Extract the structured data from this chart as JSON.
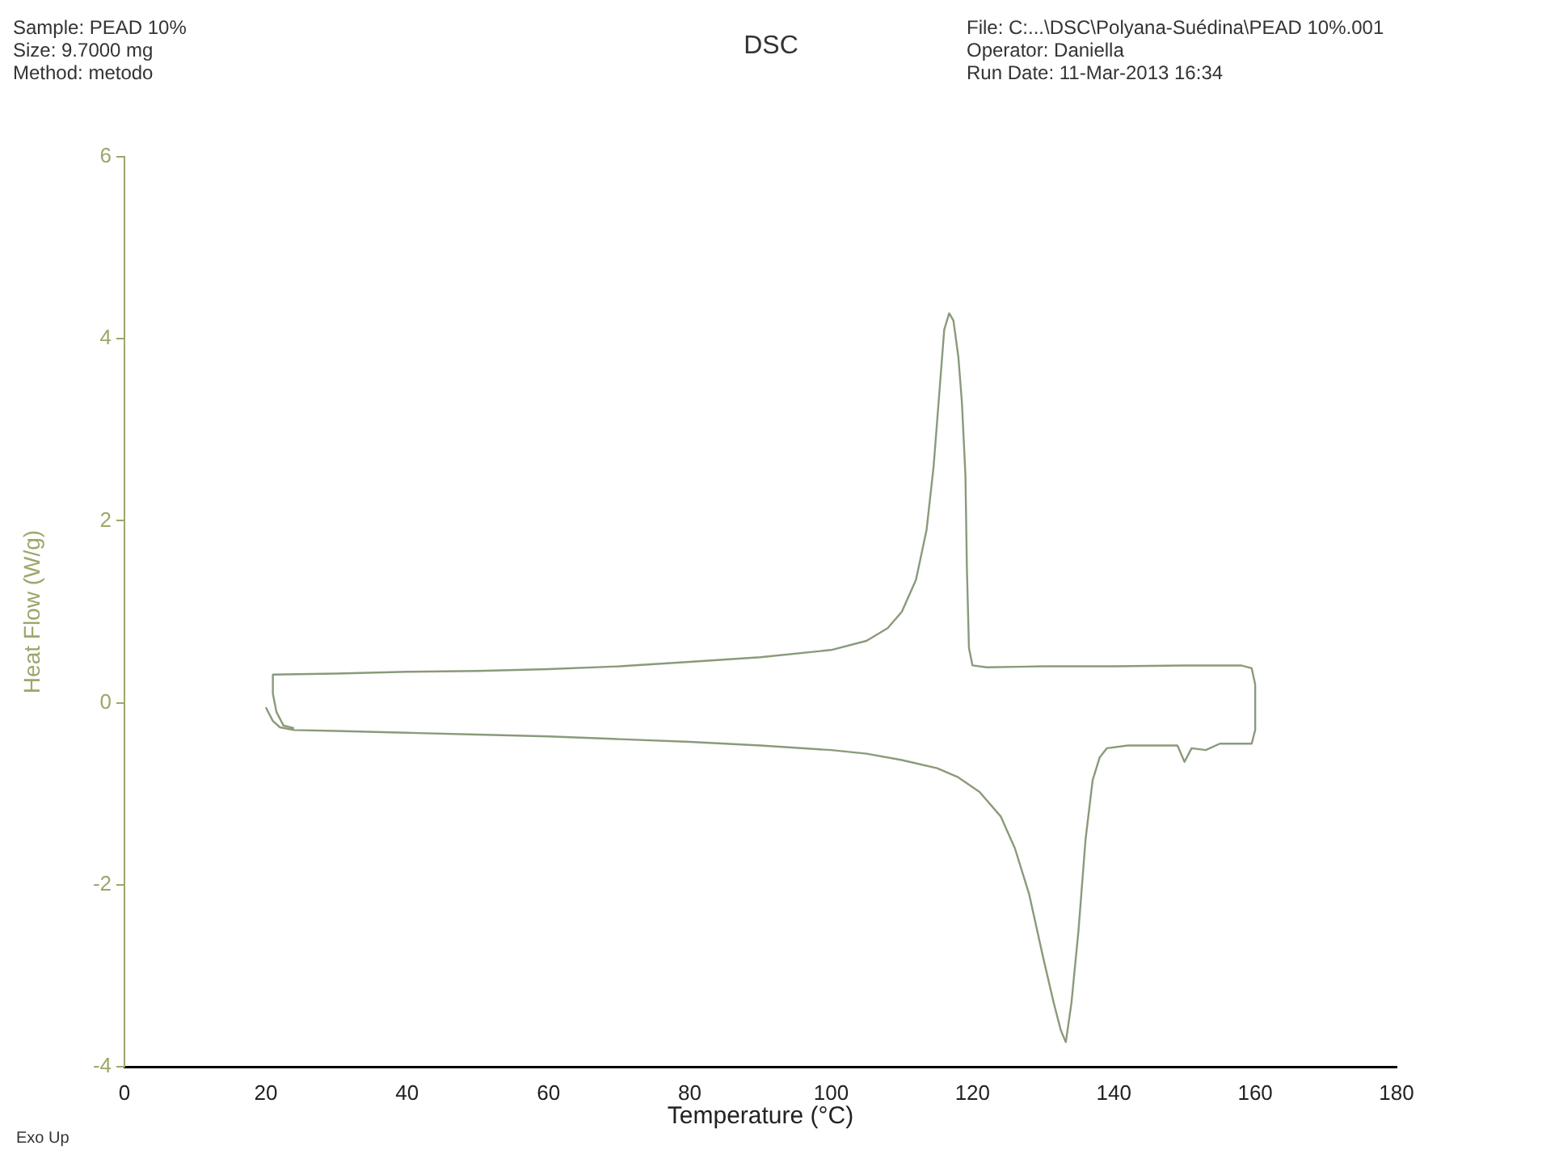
{
  "chart_data": {
    "type": "line",
    "title": "DSC",
    "xlabel": "Temperature (°C)",
    "ylabel": "Heat Flow (W/g)",
    "annotations": [
      "Sample: PEAD 10%",
      "Size: 9.7000 mg",
      "Method: metodo",
      "File: C:...\\DSC\\Polyana-Suédina\\PEAD 10%.001",
      "Operator: Daniella",
      "Run Date: 11-Mar-2013 16:34",
      "Exo Up"
    ],
    "series": [
      {
        "color": "#8a9a7a",
        "x": [
          20,
          21,
          22,
          24,
          30,
          40,
          50,
          60,
          70,
          80,
          90,
          100,
          105,
          110,
          115,
          118,
          121,
          124,
          126,
          128,
          130,
          131.5,
          132.5,
          133.2,
          134,
          135,
          136,
          137,
          138,
          139,
          142,
          145,
          149,
          150,
          151,
          153,
          155,
          158,
          159.5,
          160,
          160,
          159.5,
          158,
          150,
          140,
          130,
          122,
          120,
          119.5,
          119.2,
          119,
          118.5,
          118,
          117.3,
          116.7,
          116,
          115.3,
          114.5,
          113.5,
          112,
          110,
          108,
          105,
          100,
          90,
          80,
          70,
          60,
          50,
          40,
          30,
          21,
          21,
          21.5,
          22.5,
          24
        ],
        "values": [
          -0.05,
          -0.2,
          -0.27,
          -0.3,
          -0.31,
          -0.33,
          -0.35,
          -0.37,
          -0.4,
          -0.43,
          -0.47,
          -0.52,
          -0.56,
          -0.63,
          -0.72,
          -0.82,
          -0.98,
          -1.25,
          -1.6,
          -2.1,
          -2.8,
          -3.3,
          -3.6,
          -3.73,
          -3.3,
          -2.5,
          -1.5,
          -0.85,
          -0.6,
          -0.5,
          -0.47,
          -0.47,
          -0.47,
          -0.65,
          -0.5,
          -0.52,
          -0.45,
          -0.45,
          -0.45,
          -0.3,
          0.2,
          0.38,
          0.41,
          0.41,
          0.4,
          0.4,
          0.39,
          0.41,
          0.6,
          1.5,
          2.5,
          3.3,
          3.8,
          4.2,
          4.28,
          4.1,
          3.4,
          2.6,
          1.9,
          1.35,
          1.0,
          0.82,
          0.68,
          0.58,
          0.5,
          0.45,
          0.4,
          0.37,
          0.35,
          0.34,
          0.32,
          0.31,
          0.1,
          -0.1,
          -0.25,
          -0.28
        ]
      }
    ],
    "xlim": [
      0,
      180
    ],
    "xticks": [
      0,
      20,
      40,
      60,
      80,
      100,
      120,
      140,
      160,
      180
    ],
    "ylim": [
      -4,
      6
    ],
    "yticks": [
      -4,
      -2,
      0,
      2,
      4,
      6
    ],
    "grid": false,
    "legend": false,
    "marker": "none",
    "line_style": "solid"
  }
}
